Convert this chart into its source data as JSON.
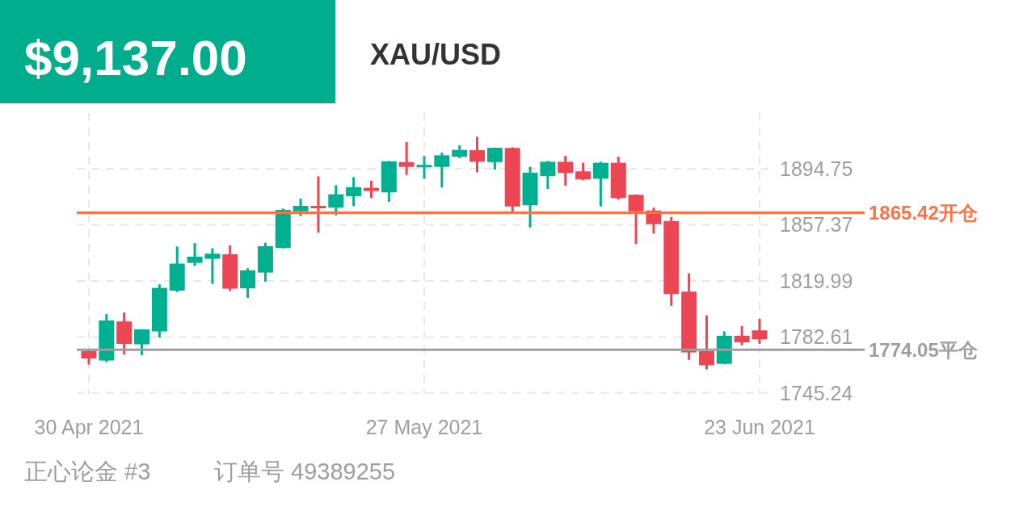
{
  "chart_data": {
    "type": "candlestick",
    "title": "XAU/USD",
    "subtitle": "$9,137.00",
    "categories": [
      "30 Apr 2021",
      null,
      null,
      null,
      null,
      null,
      null,
      null,
      null,
      null,
      null,
      null,
      null,
      null,
      null,
      null,
      null,
      null,
      null,
      "27 May 2021",
      null,
      null,
      null,
      null,
      null,
      null,
      null,
      null,
      null,
      null,
      null,
      null,
      null,
      null,
      null,
      null,
      null,
      null,
      "23 Jun 2021"
    ],
    "ohlc": [
      [
        1773.2,
        1773.5,
        1764.2,
        1768.2
      ],
      [
        1766.9,
        1797.8,
        1765.8,
        1793.6
      ],
      [
        1792.9,
        1798.9,
        1770.9,
        1778.0
      ],
      [
        1777.7,
        1787.9,
        1770.5,
        1787.6
      ],
      [
        1786.3,
        1817.7,
        1782.2,
        1815.3
      ],
      [
        1813.5,
        1842.9,
        1812.6,
        1831.5
      ],
      [
        1832.0,
        1845.2,
        1830.0,
        1836.1
      ],
      [
        1834.7,
        1841.7,
        1818.0,
        1838.1
      ],
      [
        1837.7,
        1843.7,
        1813.2,
        1814.8
      ],
      [
        1815.1,
        1828.4,
        1808.7,
        1827.0
      ],
      [
        1825.5,
        1845.4,
        1819.5,
        1843.1
      ],
      [
        1841.9,
        1868.2,
        1841.7,
        1867.3
      ],
      [
        1866.4,
        1874.8,
        1863.2,
        1870.0
      ],
      [
        1870.0,
        1889.7,
        1852.1,
        1868.6
      ],
      [
        1868.9,
        1883.8,
        1863.7,
        1877.7
      ],
      [
        1876.5,
        1889.2,
        1870.0,
        1882.4
      ],
      [
        1882.0,
        1886.7,
        1875.2,
        1879.9
      ],
      [
        1879.0,
        1900.0,
        1872.7,
        1899.6
      ],
      [
        1899.2,
        1912.5,
        1890.6,
        1896.0
      ],
      [
        1895.7,
        1903.2,
        1888.1,
        1897.3
      ],
      [
        1896.0,
        1905.5,
        1882.2,
        1903.7
      ],
      [
        1902.7,
        1910.4,
        1901.9,
        1907.3
      ],
      [
        1907.1,
        1916.1,
        1892.4,
        1899.4
      ],
      [
        1899.2,
        1908.9,
        1894.2,
        1908.7
      ],
      [
        1908.6,
        1909.1,
        1865.9,
        1869.6
      ],
      [
        1870.4,
        1896.0,
        1855.6,
        1892.1
      ],
      [
        1889.8,
        1900.0,
        1881.3,
        1899.4
      ],
      [
        1899.4,
        1903.4,
        1883.5,
        1891.9
      ],
      [
        1893.0,
        1898.7,
        1887.1,
        1887.6
      ],
      [
        1888.1,
        1899.4,
        1869.6,
        1898.7
      ],
      [
        1898.7,
        1902.8,
        1874.2,
        1875.2
      ],
      [
        1877.4,
        1877.6,
        1844.6,
        1866.4
      ],
      [
        1866.9,
        1868.8,
        1851.6,
        1857.8
      ],
      [
        1859.8,
        1862.6,
        1803.3,
        1811.2
      ],
      [
        1812.8,
        1825.0,
        1767.3,
        1772.3
      ],
      [
        1773.2,
        1797.0,
        1761.0,
        1763.7
      ],
      [
        1764.7,
        1786.3,
        1764.5,
        1783.4
      ],
      [
        1783.4,
        1789.9,
        1777.0,
        1779.0
      ],
      [
        1787.0,
        1794.7,
        1778.0,
        1781.0
      ]
    ],
    "ylim": [
      1744.6,
      1931.9
    ],
    "yticks": [
      1745.24,
      1782.61,
      1819.99,
      1857.37,
      1894.75
    ],
    "grid": true,
    "ref_lines": [
      {
        "axis": "y",
        "value": 1865.42,
        "label": "1865.42开仓",
        "color": "#ff7043"
      },
      {
        "axis": "y",
        "value": 1774.05,
        "label": "1774.05平仓",
        "color": "#9e9e9e"
      }
    ],
    "annotations": [
      "正心论金 #3",
      "订单号 49389255"
    ]
  }
}
